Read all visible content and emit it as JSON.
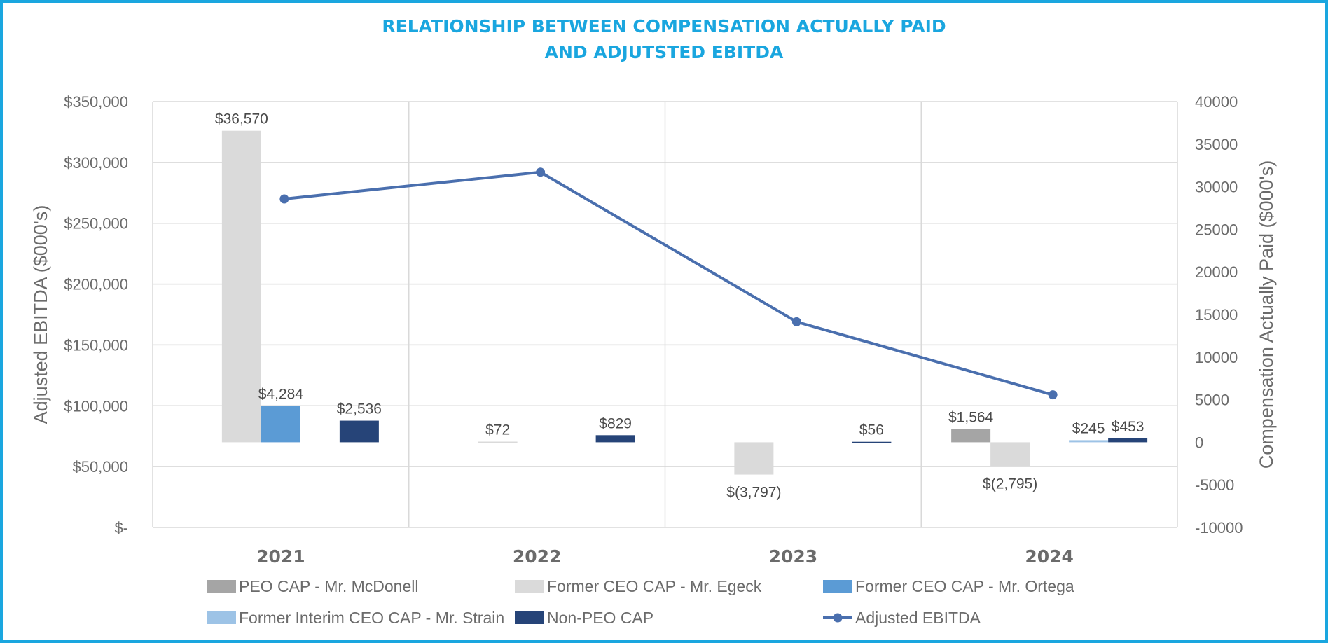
{
  "chart_data": {
    "type": "bar",
    "title_lines": [
      "RELATIONSHIP BETWEEN COMPENSATION ACTUALLY PAID",
      "AND ADJUTSTED EBITDA"
    ],
    "categories": [
      "2021",
      "2022",
      "2023",
      "2024"
    ],
    "left_axis": {
      "label": "Adjusted EBITDA ($000's)",
      "range": [
        0,
        350000
      ],
      "ticks": [
        350000,
        300000,
        250000,
        200000,
        150000,
        100000,
        50000,
        0
      ],
      "tick_labels": [
        "$350,000",
        "$300,000",
        "$250,000",
        "$200,000",
        "$150,000",
        "$100,000",
        "$50,000",
        "$-"
      ]
    },
    "right_axis": {
      "label": "Compensation Actually Paid ($000's)",
      "range": [
        -10000,
        40000
      ],
      "ticks": [
        40000,
        35000,
        30000,
        25000,
        20000,
        15000,
        10000,
        5000,
        0,
        -5000,
        -10000
      ],
      "tick_labels": [
        "40000",
        "35000",
        "30000",
        "25000",
        "20000",
        "15000",
        "10000",
        "5000",
        "0",
        "-5000",
        "-10000"
      ]
    },
    "series": [
      {
        "name": "PEO CAP - Mr. McDonell",
        "axis": "right",
        "color": "#a5a5a5",
        "values": [
          null,
          null,
          null,
          1564
        ],
        "labels": [
          null,
          null,
          null,
          "$1,564"
        ]
      },
      {
        "name": "Former CEO CAP - Mr. Egeck",
        "axis": "right",
        "color": "#dadada",
        "values": [
          36570,
          72,
          -3797,
          -2795
        ],
        "labels": [
          "$36,570",
          "$72",
          "$(3,797)",
          "$(2,795)"
        ]
      },
      {
        "name": "Former CEO CAP - Mr. Ortega",
        "axis": "right",
        "color": "#5b9bd5",
        "values": [
          4284,
          null,
          null,
          null
        ],
        "labels": [
          "$4,284",
          null,
          null,
          null
        ]
      },
      {
        "name": "Former Interim CEO CAP - Mr. Strain",
        "axis": "right",
        "color": "#9dc3e6",
        "values": [
          null,
          null,
          null,
          245
        ],
        "labels": [
          null,
          null,
          null,
          "$245"
        ]
      },
      {
        "name": "Non-PEO CAP",
        "axis": "right",
        "color": "#264478",
        "values": [
          2536,
          829,
          56,
          453
        ],
        "labels": [
          "$2,536",
          "$829",
          "$56",
          "$453"
        ]
      },
      {
        "name": "Adjusted EBITDA",
        "axis": "left",
        "type": "line",
        "color": "#4a6fae",
        "values": [
          270000,
          292000,
          169000,
          109000
        ]
      }
    ],
    "legend_position": "bottom",
    "grid": true
  }
}
